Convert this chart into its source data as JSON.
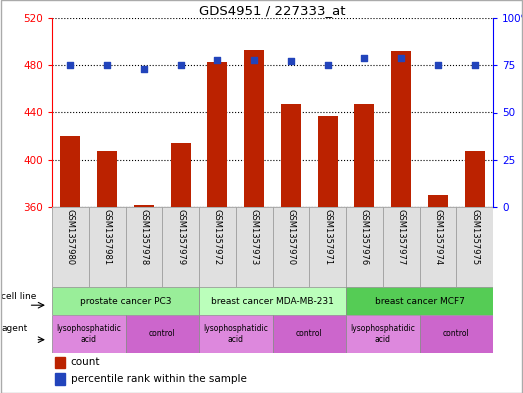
{
  "title": "GDS4951 / 227333_at",
  "samples": [
    "GSM1357980",
    "GSM1357981",
    "GSM1357978",
    "GSM1357979",
    "GSM1357972",
    "GSM1357973",
    "GSM1357970",
    "GSM1357971",
    "GSM1357976",
    "GSM1357977",
    "GSM1357974",
    "GSM1357975"
  ],
  "counts": [
    420,
    407,
    362,
    414,
    483,
    493,
    447,
    437,
    447,
    492,
    370,
    407
  ],
  "percentiles": [
    75,
    75,
    73,
    75,
    78,
    78,
    77,
    75,
    79,
    79,
    75,
    75
  ],
  "ylim_left": [
    360,
    520
  ],
  "ylim_right": [
    0,
    100
  ],
  "yticks_left": [
    360,
    400,
    440,
    480,
    520
  ],
  "yticks_right": [
    0,
    25,
    50,
    75,
    100
  ],
  "cell_lines": [
    {
      "label": "prostate cancer PC3",
      "start": 0,
      "end": 4,
      "color": "#99ee99"
    },
    {
      "label": "breast cancer MDA-MB-231",
      "start": 4,
      "end": 8,
      "color": "#bbffbb"
    },
    {
      "label": "breast cancer MCF7",
      "start": 8,
      "end": 12,
      "color": "#55cc55"
    }
  ],
  "agents": [
    {
      "label": "lysophosphatidic\nacid",
      "start": 0,
      "end": 2,
      "color": "#dd88dd"
    },
    {
      "label": "control",
      "start": 2,
      "end": 4,
      "color": "#cc66cc"
    },
    {
      "label": "lysophosphatidic\nacid",
      "start": 4,
      "end": 6,
      "color": "#dd88dd"
    },
    {
      "label": "control",
      "start": 6,
      "end": 8,
      "color": "#cc66cc"
    },
    {
      "label": "lysophosphatidic\nacid",
      "start": 8,
      "end": 10,
      "color": "#dd88dd"
    },
    {
      "label": "control",
      "start": 10,
      "end": 12,
      "color": "#cc66cc"
    }
  ],
  "bar_color": "#bb2200",
  "dot_color": "#2244bb",
  "bar_width": 0.55,
  "cell_line_label": "cell line",
  "agent_label": "agent",
  "legend_count": "count",
  "legend_pct": "percentile rank within the sample",
  "fig_w": 5.23,
  "fig_h": 3.93,
  "dpi": 100
}
